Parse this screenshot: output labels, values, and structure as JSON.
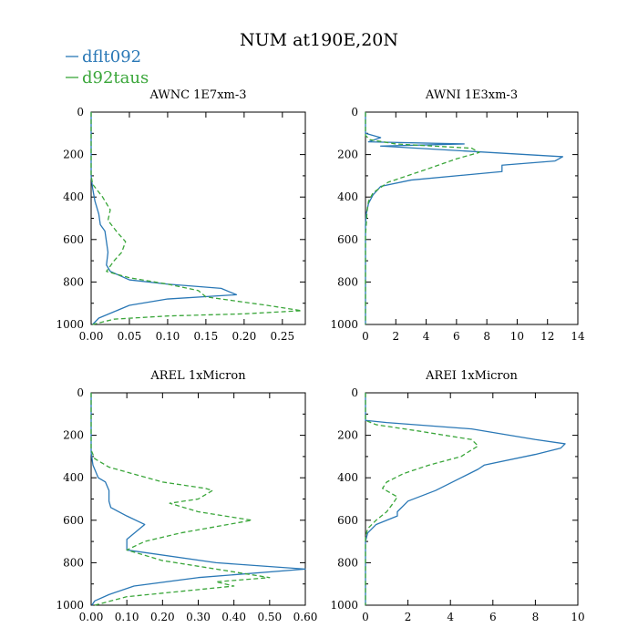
{
  "title": "NUM at190E,20N",
  "legend": [
    {
      "name": "dflt092",
      "color": "#2a78b6",
      "dash": ""
    },
    {
      "name": "d92taus",
      "color": "#3aa63a",
      "dash": "6,3"
    }
  ],
  "chart_data": [
    {
      "type": "line",
      "title": "AWNC  1E7xm-3",
      "xlim": [
        0,
        0.28
      ],
      "xticks": [
        0,
        0.05,
        0.1,
        0.15,
        0.2,
        0.25
      ],
      "xtick_labels": [
        "0.00",
        "0.05",
        "0.10",
        "0.15",
        "0.20",
        "0.25"
      ],
      "ylim": [
        0,
        1000
      ],
      "yticks": [
        0,
        200,
        400,
        600,
        800,
        1000
      ],
      "ytick_labels": [
        "0",
        "200",
        "400",
        "600",
        "800",
        "1000"
      ],
      "series": [
        {
          "name": "dflt092",
          "x": [
            0,
            0,
            0.002,
            0.005,
            0.01,
            0.012,
            0.018,
            0.02,
            0.022,
            0.02,
            0.025,
            0.05,
            0.1,
            0.17,
            0.19,
            0.1,
            0.05,
            0.03,
            0.01,
            0.002
          ],
          "y": [
            0,
            300,
            360,
            420,
            480,
            530,
            560,
            610,
            660,
            720,
            750,
            790,
            810,
            830,
            860,
            880,
            910,
            940,
            970,
            1000
          ]
        },
        {
          "name": "d92taus",
          "x": [
            0,
            0,
            0.002,
            0.015,
            0.025,
            0.022,
            0.035,
            0.045,
            0.04,
            0.03,
            0.02,
            0.05,
            0.1,
            0.14,
            0.15,
            0.23,
            0.275,
            0.2,
            0.1,
            0.03,
            0.002
          ],
          "y": [
            0,
            300,
            340,
            400,
            460,
            510,
            570,
            610,
            660,
            700,
            750,
            780,
            810,
            840,
            870,
            910,
            935,
            950,
            960,
            975,
            1000
          ]
        }
      ]
    },
    {
      "type": "line",
      "title": "AWNI  1E3xm-3",
      "xlim": [
        0,
        14
      ],
      "xticks": [
        0,
        2,
        4,
        6,
        8,
        10,
        12,
        14
      ],
      "xtick_labels": [
        "0",
        "2",
        "4",
        "6",
        "8",
        "10",
        "12",
        "14"
      ],
      "ylim": [
        0,
        1000
      ],
      "yticks": [
        0,
        200,
        400,
        600,
        800,
        1000
      ],
      "ytick_labels": [
        "0",
        "200",
        "400",
        "600",
        "800",
        "1000"
      ],
      "series": [
        {
          "name": "dflt092",
          "x": [
            0,
            0,
            1,
            0.2,
            6.5,
            1,
            13,
            12.5,
            9,
            9,
            3,
            1,
            0.5,
            0.2,
            0.05,
            0,
            0
          ],
          "y": [
            0,
            100,
            120,
            140,
            150,
            160,
            210,
            230,
            250,
            280,
            320,
            350,
            390,
            430,
            480,
            530,
            1000
          ]
        },
        {
          "name": "d92taus",
          "x": [
            0,
            0,
            0.3,
            2,
            7,
            7.5,
            6,
            4,
            1.5,
            0.5,
            0.2,
            0.1,
            0.05,
            0,
            0
          ],
          "y": [
            0,
            110,
            130,
            150,
            170,
            190,
            220,
            270,
            330,
            380,
            420,
            470,
            530,
            580,
            1000
          ]
        }
      ]
    },
    {
      "type": "line",
      "title": "AREL  1xMicron",
      "xlim": [
        0,
        0.6
      ],
      "xticks": [
        0,
        0.1,
        0.2,
        0.3,
        0.4,
        0.5,
        0.6
      ],
      "xtick_labels": [
        "0.00",
        "0.10",
        "0.20",
        "0.30",
        "0.40",
        "0.50",
        "0.60"
      ],
      "ylim": [
        0,
        1000
      ],
      "yticks": [
        0,
        200,
        400,
        600,
        800,
        1000
      ],
      "ytick_labels": [
        "0",
        "200",
        "400",
        "600",
        "800",
        "1000"
      ],
      "series": [
        {
          "name": "dflt092",
          "x": [
            0,
            0,
            0.005,
            0.02,
            0.04,
            0.05,
            0.05,
            0.055,
            0.1,
            0.15,
            0.1,
            0.1,
            0.35,
            0.6,
            0.3,
            0.12,
            0.05,
            0.01,
            0.002
          ],
          "y": [
            0,
            280,
            340,
            400,
            420,
            460,
            510,
            540,
            580,
            620,
            690,
            740,
            800,
            830,
            870,
            910,
            950,
            980,
            1000
          ]
        },
        {
          "name": "d92taus",
          "x": [
            0,
            0,
            0.01,
            0.05,
            0.2,
            0.32,
            0.34,
            0.3,
            0.22,
            0.3,
            0.45,
            0.25,
            0.15,
            0.1,
            0.2,
            0.35,
            0.5,
            0.35,
            0.4,
            0.1,
            0.01
          ],
          "y": [
            0,
            270,
            310,
            350,
            420,
            450,
            460,
            500,
            520,
            560,
            600,
            660,
            700,
            740,
            790,
            830,
            870,
            890,
            910,
            960,
            1000
          ]
        }
      ]
    },
    {
      "type": "line",
      "title": "AREI  1xMicron",
      "xlim": [
        0,
        10
      ],
      "xticks": [
        0,
        2,
        4,
        6,
        8,
        10
      ],
      "xtick_labels": [
        "0",
        "2",
        "4",
        "6",
        "8",
        "10"
      ],
      "ylim": [
        0,
        1000
      ],
      "yticks": [
        0,
        200,
        400,
        600,
        800,
        1000
      ],
      "ytick_labels": [
        "0",
        "200",
        "400",
        "600",
        "800",
        "1000"
      ],
      "series": [
        {
          "name": "dflt092",
          "x": [
            0,
            0,
            1,
            5,
            8,
            9.4,
            9.2,
            8,
            5.6,
            5.3,
            4.5,
            3.3,
            2,
            1.5,
            1.5,
            0.5,
            0.1,
            0,
            0
          ],
          "y": [
            0,
            130,
            140,
            170,
            220,
            240,
            260,
            290,
            340,
            360,
            400,
            460,
            510,
            560,
            580,
            620,
            660,
            700,
            1000
          ]
        },
        {
          "name": "d92taus",
          "x": [
            0,
            0,
            0.5,
            2.5,
            5,
            5.3,
            4.5,
            3,
            1.8,
            1,
            0.8,
            1.5,
            1.3,
            1,
            0.5,
            0.1,
            0,
            0
          ],
          "y": [
            0,
            130,
            150,
            180,
            220,
            250,
            300,
            340,
            380,
            420,
            450,
            490,
            520,
            560,
            600,
            640,
            680,
            1000
          ]
        }
      ]
    }
  ]
}
